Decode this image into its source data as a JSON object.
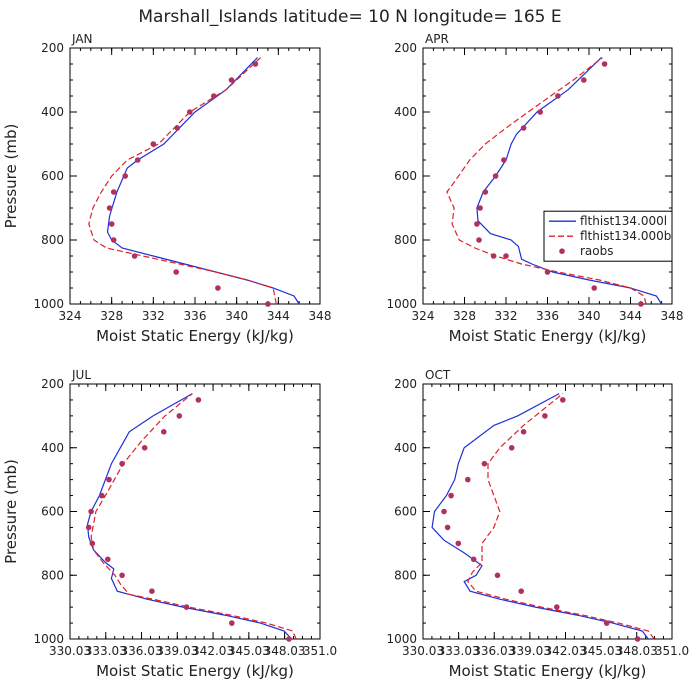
{
  "suptitle": "Marshall_Islands  latitude= 10 N longitude= 165 E",
  "colors": {
    "model1": "#1f2fd6",
    "model2": "#e0202a",
    "obs": "#b03060",
    "axis": "#000000",
    "text": "#222222"
  },
  "chart_data": [
    {
      "type": "line",
      "panel_label": "JAN",
      "xlabel": "Moist Static Energy (kJ/kg)",
      "ylabel": "Pressure (mb)",
      "xlim": [
        324,
        348
      ],
      "ylim": [
        1000,
        200
      ],
      "xticks": [
        324,
        328,
        332,
        336,
        340,
        344,
        348
      ],
      "xtick_labels": [
        "324",
        "328",
        "332",
        "336",
        "340",
        "344",
        "348"
      ],
      "yticks": [
        200,
        400,
        600,
        800,
        1000
      ],
      "ytick_labels": [
        "200",
        "400",
        "600",
        "800",
        "1000"
      ],
      "legend": null,
      "series": [
        {
          "name": "flthist134.000l",
          "kind": "line",
          "style": "solid",
          "color": "#1f2fd6",
          "x": [
            346.0,
            345.5,
            343.5,
            341.0,
            338.0,
            335.0,
            332.0,
            329.0,
            328.0,
            327.6,
            327.8,
            328.5,
            329.5,
            330.5,
            333.0,
            336.0,
            339.0,
            342.0
          ],
          "y": [
            1000,
            975,
            950,
            925,
            900,
            875,
            850,
            825,
            800,
            775,
            725,
            650,
            575,
            550,
            500,
            400,
            330,
            230
          ]
        },
        {
          "name": "flthist134.000b",
          "kind": "line",
          "style": "dashed",
          "color": "#e0202a",
          "x": [
            343.8,
            343.5,
            341.0,
            338.0,
            334.5,
            331.0,
            327.5,
            326.3,
            325.8,
            326.2,
            327.0,
            328.0,
            329.5,
            331.0,
            332.5,
            335.5,
            339.0,
            342.3
          ],
          "y": [
            1000,
            950,
            925,
            900,
            875,
            850,
            825,
            800,
            750,
            700,
            650,
            600,
            550,
            525,
            500,
            400,
            330,
            230
          ]
        },
        {
          "name": "raobs",
          "kind": "points",
          "color": "#b03060",
          "x": [
            341.8,
            339.5,
            337.8,
            335.5,
            334.3,
            332.0,
            330.5,
            329.3,
            328.2,
            327.8,
            328.0,
            328.2,
            330.2,
            334.2,
            338.2,
            343.0
          ],
          "y": [
            250,
            300,
            350,
            400,
            450,
            500,
            550,
            600,
            650,
            700,
            750,
            800,
            850,
            900,
            950,
            1000
          ]
        }
      ]
    },
    {
      "type": "line",
      "panel_label": "APR",
      "xlabel": "Moist Static Energy (kJ/kg)",
      "ylabel": "",
      "xlim": [
        324,
        348
      ],
      "ylim": [
        1000,
        200
      ],
      "xticks": [
        324,
        328,
        332,
        336,
        340,
        344,
        348
      ],
      "xtick_labels": [
        "324",
        "328",
        "332",
        "336",
        "340",
        "344",
        "348"
      ],
      "yticks": [
        200,
        400,
        600,
        800,
        1000
      ],
      "ytick_labels": [
        "200",
        "400",
        "600",
        "800",
        "1000"
      ],
      "legend": {
        "position": "right",
        "entries": [
          "flthist134.000l",
          "flthist134.000b",
          "raobs"
        ]
      },
      "series": [
        {
          "name": "flthist134.000l",
          "kind": "line",
          "style": "solid",
          "color": "#1f2fd6",
          "x": [
            347.0,
            346.5,
            344.0,
            340.0,
            336.5,
            334.5,
            333.5,
            333.2,
            332.5,
            330.5,
            329.3,
            329.2,
            329.8,
            331.0,
            332.0,
            332.5,
            333.0,
            335.0,
            338.0,
            341.2
          ],
          "y": [
            1000,
            975,
            950,
            925,
            900,
            875,
            860,
            820,
            800,
            780,
            740,
            700,
            650,
            600,
            550,
            500,
            470,
            400,
            330,
            230
          ]
        },
        {
          "name": "flthist134.000b",
          "kind": "line",
          "style": "dashed",
          "color": "#e0202a",
          "x": [
            345.5,
            345.3,
            344.0,
            341.0,
            337.0,
            333.5,
            331.0,
            329.0,
            327.5,
            326.8,
            327.0,
            326.3,
            327.0,
            328.5,
            330.0,
            332.0,
            335.0,
            338.5,
            341.3
          ],
          "y": [
            1000,
            975,
            950,
            925,
            900,
            875,
            850,
            825,
            800,
            750,
            700,
            650,
            620,
            550,
            500,
            450,
            380,
            300,
            230
          ]
        },
        {
          "name": "raobs",
          "kind": "points",
          "color": "#b03060",
          "x": [
            341.5,
            339.5,
            337.0,
            335.3,
            333.7,
            331.8,
            331.0,
            330.0,
            329.5,
            329.2,
            329.4,
            330.8,
            332.0,
            336.0,
            340.5,
            345.0
          ],
          "y": [
            250,
            300,
            350,
            400,
            450,
            550,
            600,
            650,
            700,
            750,
            800,
            850,
            850,
            900,
            950,
            1000
          ]
        }
      ]
    },
    {
      "type": "line",
      "panel_label": "JUL",
      "xlabel": "Moist Static Energy (kJ/kg)",
      "ylabel": "Pressure (mb)",
      "xlim": [
        330.03,
        351.0
      ],
      "ylim": [
        1000,
        200
      ],
      "xticks": [
        330.03,
        333.03,
        336.03,
        339.03,
        342.03,
        345.03,
        348.03,
        351.0
      ],
      "xtick_labels": [
        "330.03",
        "333.03",
        "336.03",
        "339.03",
        "342.03",
        "345.03",
        "348.03",
        "351.0"
      ],
      "yticks": [
        200,
        400,
        600,
        800,
        1000
      ],
      "ytick_labels": [
        "200",
        "400",
        "600",
        "800",
        "1000"
      ],
      "legend": null,
      "series": [
        {
          "name": "flthist134.000l",
          "kind": "line",
          "style": "solid",
          "color": "#1f2fd6",
          "x": [
            348.6,
            348.0,
            346.0,
            343.0,
            339.5,
            336.5,
            334.0,
            333.5,
            333.7,
            333.0,
            332.0,
            331.6,
            331.5,
            331.8,
            332.5,
            333.5,
            335.0,
            337.0,
            340.3
          ],
          "y": [
            1000,
            975,
            950,
            925,
            900,
            875,
            850,
            810,
            780,
            760,
            720,
            680,
            640,
            600,
            550,
            450,
            350,
            300,
            230
          ]
        },
        {
          "name": "flthist134.000b",
          "kind": "line",
          "style": "dashed",
          "color": "#e0202a",
          "x": [
            349.0,
            348.7,
            346.5,
            343.5,
            340.0,
            337.0,
            335.0,
            334.3,
            333.8,
            332.8,
            332.0,
            331.8,
            332.0,
            332.2,
            333.0,
            334.5,
            336.0,
            338.0,
            340.3
          ],
          "y": [
            1000,
            975,
            950,
            925,
            900,
            875,
            860,
            830,
            800,
            760,
            720,
            680,
            640,
            600,
            550,
            450,
            380,
            300,
            230
          ]
        },
        {
          "name": "raobs",
          "kind": "points",
          "color": "#b03060",
          "x": [
            340.8,
            339.2,
            337.9,
            336.3,
            334.4,
            333.3,
            332.7,
            331.8,
            331.6,
            331.9,
            333.2,
            334.4,
            336.9,
            339.8,
            343.6,
            348.4
          ],
          "y": [
            250,
            300,
            350,
            400,
            450,
            500,
            550,
            600,
            650,
            700,
            750,
            800,
            850,
            900,
            950,
            1000
          ]
        }
      ]
    },
    {
      "type": "line",
      "panel_label": "OCT",
      "xlabel": "Moist Static Energy (kJ/kg)",
      "ylabel": "",
      "xlim": [
        330.03,
        351.0
      ],
      "ylim": [
        1000,
        200
      ],
      "xticks": [
        330.03,
        333.03,
        336.03,
        339.03,
        342.03,
        345.03,
        348.03,
        351.0
      ],
      "xtick_labels": [
        "330.03",
        "333.03",
        "336.03",
        "339.03",
        "342.03",
        "345.03",
        "348.03",
        "351.0"
      ],
      "yticks": [
        200,
        400,
        600,
        800,
        1000
      ],
      "ytick_labels": [
        "200",
        "400",
        "600",
        "800",
        "1000"
      ],
      "legend": null,
      "series": [
        {
          "name": "flthist134.000l",
          "kind": "line",
          "style": "solid",
          "color": "#1f2fd6",
          "x": [
            349.0,
            348.5,
            346.0,
            343.0,
            339.5,
            336.5,
            334.0,
            333.5,
            334.5,
            335.0,
            333.5,
            331.8,
            330.8,
            331.0,
            332.0,
            332.7,
            333.0,
            333.5,
            336.0,
            338.0,
            341.5
          ],
          "y": [
            1000,
            975,
            950,
            925,
            900,
            875,
            850,
            820,
            800,
            770,
            730,
            690,
            650,
            600,
            550,
            500,
            450,
            400,
            330,
            300,
            230
          ]
        },
        {
          "name": "flthist134.000b",
          "kind": "line",
          "style": "dashed",
          "color": "#e0202a",
          "x": [
            349.5,
            349.0,
            346.5,
            343.5,
            340.0,
            337.0,
            334.5,
            333.8,
            334.2,
            335.0,
            335.0,
            336.0,
            336.5,
            336.0,
            335.5,
            335.5,
            336.5,
            338.5,
            341.8
          ],
          "y": [
            1000,
            975,
            950,
            925,
            900,
            875,
            850,
            820,
            790,
            760,
            700,
            650,
            600,
            550,
            500,
            450,
            400,
            330,
            230
          ]
        },
        {
          "name": "raobs",
          "kind": "points",
          "color": "#b03060",
          "x": [
            341.8,
            340.3,
            338.5,
            337.5,
            335.2,
            333.8,
            332.4,
            331.8,
            332.1,
            333.0,
            334.3,
            336.3,
            338.3,
            341.3,
            345.5,
            348.1
          ],
          "y": [
            250,
            300,
            350,
            400,
            450,
            500,
            550,
            600,
            650,
            700,
            750,
            800,
            850,
            900,
            950,
            1000
          ]
        }
      ]
    }
  ]
}
